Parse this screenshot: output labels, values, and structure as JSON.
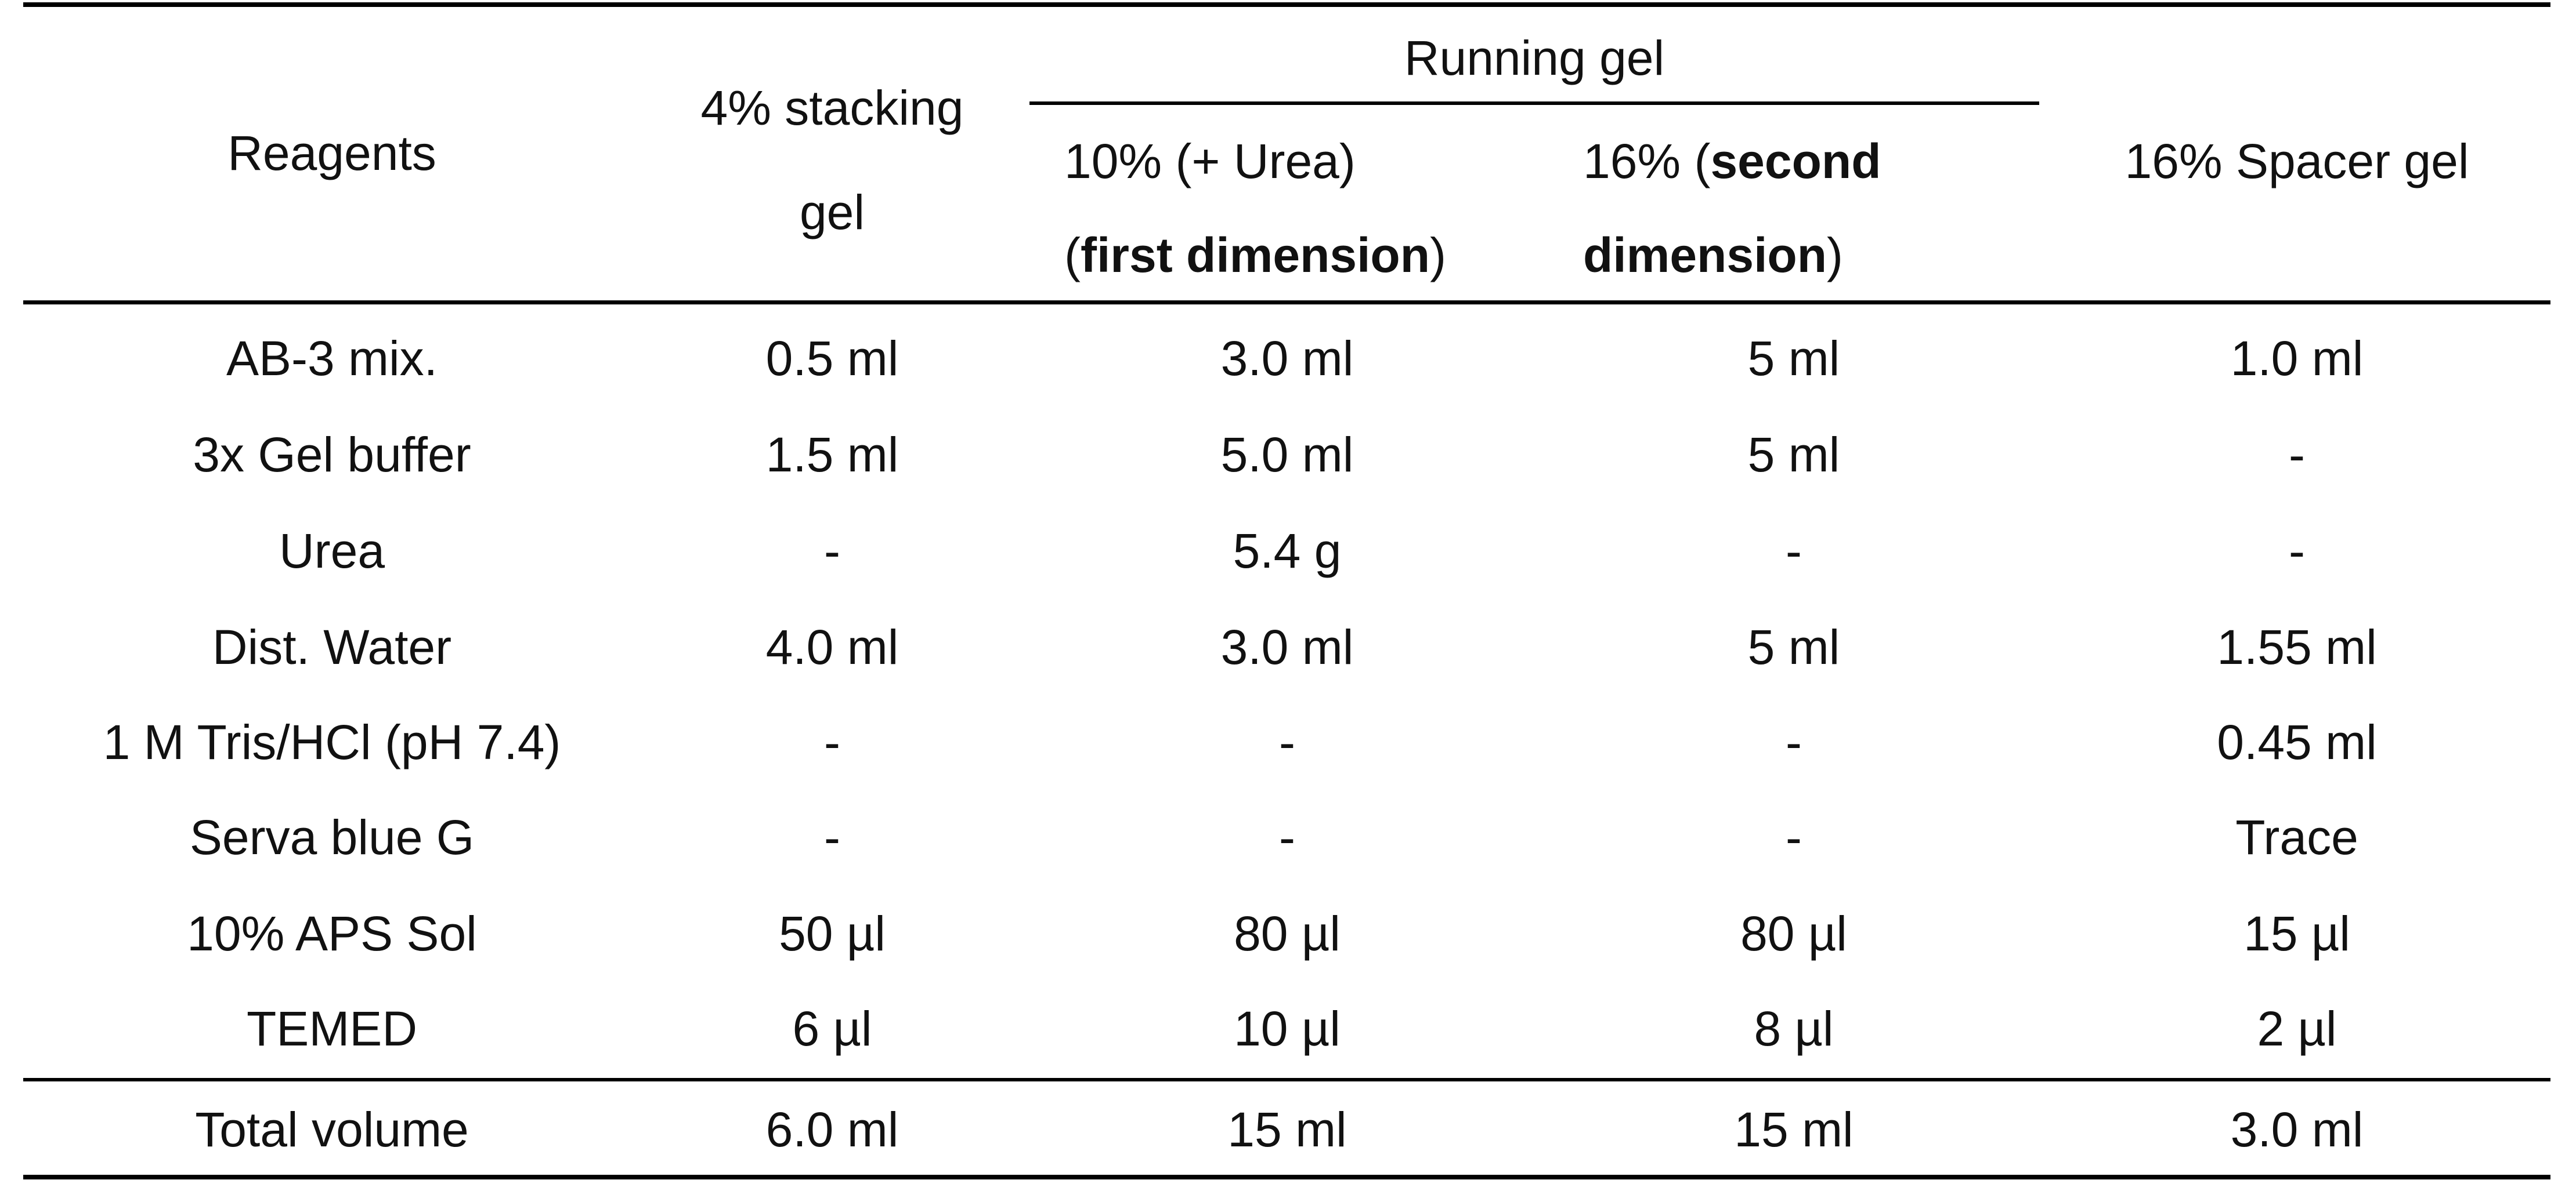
{
  "table": {
    "header": {
      "reagents": "Reagents",
      "stacking_line1": "4% stacking",
      "stacking_line2": "gel",
      "running_gel": "Running gel",
      "running_first_line1": "10% (+ Urea)",
      "running_first_line2_open": "(",
      "running_first_line2_bold": "first dimension",
      "running_first_line2_close": ")",
      "running_second_line1_plain": "16% (",
      "running_second_line1_bold": "second",
      "running_second_line2_bold": "dimension",
      "running_second_line2_close": ")",
      "spacer": "16% Spacer gel"
    },
    "rows": [
      {
        "reagent": "AB-3 mix.",
        "stacking": "0.5 ml",
        "first": "3.0 ml",
        "second": "5 ml",
        "spacer": "1.0 ml"
      },
      {
        "reagent": "3x Gel buffer",
        "stacking": "1.5 ml",
        "first": "5.0 ml",
        "second": "5 ml",
        "spacer": "-"
      },
      {
        "reagent": "Urea",
        "stacking": "-",
        "first": "5.4 g",
        "second": "-",
        "spacer": "-"
      },
      {
        "reagent": "Dist. Water",
        "stacking": "4.0 ml",
        "first": "3.0 ml",
        "second": "5 ml",
        "spacer": "1.55 ml"
      },
      {
        "reagent": "1 M Tris/HCl (pH 7.4)",
        "stacking": "-",
        "first": "-",
        "second": "-",
        "spacer": "0.45 ml"
      },
      {
        "reagent": "Serva blue G",
        "stacking": "-",
        "first": "-",
        "second": "-",
        "spacer": "Trace"
      },
      {
        "reagent": "10% APS Sol",
        "stacking": "50 µl",
        "first": "80 µl",
        "second": "80 µl",
        "spacer": "15 µl"
      },
      {
        "reagent": "TEMED",
        "stacking": "6 µl",
        "first": "10 µl",
        "second": "8 µl",
        "spacer": "2 µl"
      }
    ],
    "total": {
      "reagent": "Total volume",
      "stacking": "6.0 ml",
      "first": "15 ml",
      "second": "15 ml",
      "spacer": "3.0 ml"
    }
  }
}
